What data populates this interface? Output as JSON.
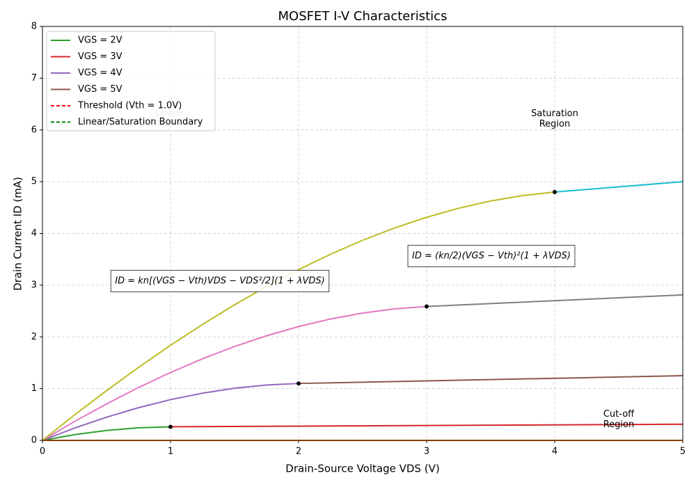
{
  "chart_data": {
    "type": "line",
    "title": "MOSFET I-V Characteristics",
    "x_label": "Drain-Source Voltage VDS (V)",
    "y_label": "Drain Current ID (mA)",
    "xlim": [
      0,
      5
    ],
    "ylim": [
      0,
      8
    ],
    "xticks": [
      0,
      1,
      2,
      3,
      4,
      5
    ],
    "yticks": [
      0,
      1,
      2,
      3,
      4,
      5,
      6,
      7,
      8
    ],
    "grid": true,
    "series": [
      {
        "color": "#2ca02c",
        "x": [
          0,
          0.25,
          0.5,
          0.75,
          1
        ],
        "values": [
          0,
          0.1107,
          0.1922,
          0.2432,
          0.2625
        ]
      },
      {
        "color": "#d62728",
        "x": [
          1,
          5
        ],
        "values": [
          0.2625,
          0.3125
        ]
      },
      {
        "color": "#9467bd",
        "x": [
          0,
          0.25,
          0.5,
          0.75,
          1,
          1.25,
          1.5,
          1.75,
          2
        ],
        "values": [
          0,
          0.2373,
          0.4484,
          0.6322,
          0.7875,
          0.9131,
          1.0078,
          1.0705,
          1.1
        ]
      },
      {
        "color": "#8c564b",
        "x": [
          2,
          5
        ],
        "values": [
          1.1,
          1.25
        ]
      },
      {
        "color": "#e377c2",
        "x": [
          0,
          0.25,
          0.5,
          0.75,
          1,
          1.25,
          1.5,
          1.75,
          2,
          2.25,
          2.5,
          2.75,
          3
        ],
        "values": [
          0,
          0.3639,
          0.7047,
          1.0213,
          1.3125,
          1.5771,
          1.8141,
          2.0221,
          2.2,
          2.3467,
          2.4609,
          2.5416,
          2.5875
        ]
      },
      {
        "color": "#7f7f7f",
        "x": [
          3,
          5
        ],
        "values": [
          2.5875,
          2.8125
        ]
      },
      {
        "color": "#bcbd22",
        "x": [
          0,
          0.25,
          0.5,
          0.75,
          1,
          1.25,
          1.5,
          1.75,
          2,
          2.25,
          2.5,
          2.75,
          3,
          3.25,
          3.5,
          3.75,
          4
        ],
        "values": [
          0,
          0.4904,
          0.9609,
          1.4104,
          1.8375,
          2.2412,
          2.6203,
          2.9736,
          3.3,
          3.5982,
          3.8672,
          4.1056,
          4.3125,
          4.4865,
          4.6266,
          4.7314,
          4.8
        ]
      },
      {
        "color": "#17becf",
        "x": [
          4,
          5
        ],
        "values": [
          4.8,
          5.0
        ]
      },
      {
        "color": "#ff7f0e",
        "x": [
          0,
          5
        ],
        "values": [
          0,
          0
        ]
      }
    ],
    "markers": {
      "color": "#000000",
      "x": [
        1,
        2,
        3,
        4
      ],
      "values": [
        0.2625,
        1.1,
        2.5875,
        4.8
      ]
    },
    "legend": [
      {
        "name": "VGS = 2V",
        "color": "#2ca02c",
        "dashed": false
      },
      {
        "name": "VGS = 3V",
        "color": "#d62728",
        "dashed": false
      },
      {
        "name": "VGS = 4V",
        "color": "#9467bd",
        "dashed": false
      },
      {
        "name": "VGS = 5V",
        "color": "#8c564b",
        "dashed": false
      },
      {
        "name": "Threshold (Vth = 1.0V)",
        "color": "#ff0000",
        "dashed": true
      },
      {
        "name": "Linear/Saturation Boundary",
        "color": "#008000",
        "dashed": true
      }
    ],
    "legend_position": "upper left",
    "annotations": [
      {
        "text": [
          "Linear",
          "Region"
        ]
      },
      {
        "text": [
          "Saturation",
          "Region"
        ]
      },
      {
        "text": [
          "Cut-off",
          "Region"
        ]
      }
    ],
    "equations": [
      "ID = kn[(VGS − Vth)VDS − VDS²/2](1 + λVDS)",
      "ID = (kn/2)(VGS − Vth)²(1 + λVDS)"
    ]
  }
}
